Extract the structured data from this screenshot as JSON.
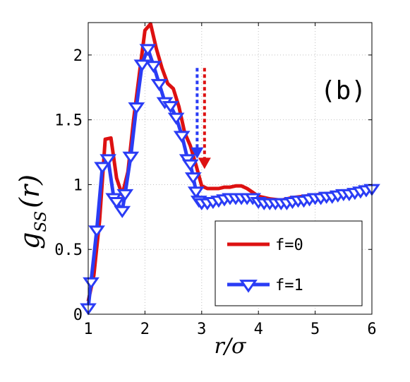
{
  "chart_data": {
    "type": "line",
    "panel_label": "(b)",
    "xlabel": "r/σ",
    "ylabel": {
      "main": "g",
      "sub": "SS",
      "arg": "(r)"
    },
    "xlim": [
      1,
      6
    ],
    "ylim": [
      0,
      2.25
    ],
    "xticks": [
      "1",
      "2",
      "3",
      "4",
      "5",
      "6"
    ],
    "xtick_values": [
      1,
      2,
      3,
      4,
      5,
      6
    ],
    "yticks": [
      "0",
      "0.5",
      "1",
      "1.5",
      "2"
    ],
    "ytick_values": [
      0,
      0.5,
      1,
      1.5,
      2
    ],
    "grid": true,
    "legend_position": "bottom-right",
    "series": [
      {
        "name": "f=0",
        "color": "#dd1111",
        "marker": "none",
        "x": [
          1.0,
          1.1,
          1.2,
          1.3,
          1.4,
          1.5,
          1.6,
          1.7,
          1.8,
          1.9,
          2.0,
          2.1,
          2.2,
          2.3,
          2.4,
          2.5,
          2.6,
          2.7,
          2.8,
          2.9,
          3.0,
          3.1,
          3.2,
          3.3,
          3.4,
          3.5,
          3.6,
          3.7,
          3.8,
          3.9,
          4.0,
          4.2,
          4.4,
          4.6,
          4.8,
          5.0,
          5.2,
          5.4,
          5.6,
          5.8,
          6.0
        ],
        "y": [
          0.1,
          0.3,
          0.72,
          1.35,
          1.36,
          1.05,
          0.92,
          1.1,
          1.5,
          1.85,
          2.19,
          2.24,
          2.05,
          1.9,
          1.78,
          1.74,
          1.6,
          1.4,
          1.3,
          1.15,
          0.99,
          0.97,
          0.97,
          0.97,
          0.98,
          0.98,
          0.99,
          0.99,
          0.97,
          0.94,
          0.91,
          0.89,
          0.88,
          0.9,
          0.91,
          0.92,
          0.93,
          0.94,
          0.95,
          0.96,
          0.97
        ]
      },
      {
        "name": "f=1",
        "color": "#2a3cf5",
        "marker": "triangle-down",
        "x": [
          1.0,
          1.05,
          1.15,
          1.25,
          1.35,
          1.45,
          1.5,
          1.6,
          1.65,
          1.75,
          1.85,
          1.95,
          2.05,
          2.15,
          2.25,
          2.35,
          2.45,
          2.55,
          2.65,
          2.75,
          2.8,
          2.85,
          2.9,
          2.95,
          3.0,
          3.1,
          3.2,
          3.3,
          3.4,
          3.5,
          3.6,
          3.7,
          3.8,
          3.9,
          4.0,
          4.1,
          4.2,
          4.3,
          4.4,
          4.5,
          4.6,
          4.7,
          4.8,
          4.9,
          5.0,
          5.1,
          5.2,
          5.3,
          5.4,
          5.5,
          5.6,
          5.7,
          5.8,
          5.9,
          6.0
        ],
        "y": [
          0.05,
          0.25,
          0.65,
          1.14,
          1.2,
          0.9,
          0.87,
          0.8,
          0.93,
          1.22,
          1.6,
          1.93,
          2.05,
          1.92,
          1.78,
          1.64,
          1.61,
          1.52,
          1.38,
          1.2,
          1.16,
          1.06,
          0.95,
          0.88,
          0.86,
          0.86,
          0.87,
          0.88,
          0.89,
          0.9,
          0.9,
          0.9,
          0.9,
          0.9,
          0.87,
          0.86,
          0.86,
          0.86,
          0.86,
          0.86,
          0.87,
          0.88,
          0.88,
          0.89,
          0.9,
          0.9,
          0.91,
          0.91,
          0.92,
          0.93,
          0.93,
          0.94,
          0.95,
          0.96,
          0.97
        ]
      }
    ],
    "annotations": [
      {
        "type": "dotted-arrow",
        "color": "#2a3cf5",
        "x": 2.92,
        "y_from": 1.9,
        "y_to": 1.2
      },
      {
        "type": "dotted-arrow",
        "color": "#dd1111",
        "x": 3.05,
        "y_from": 1.9,
        "y_to": 1.12
      }
    ]
  }
}
